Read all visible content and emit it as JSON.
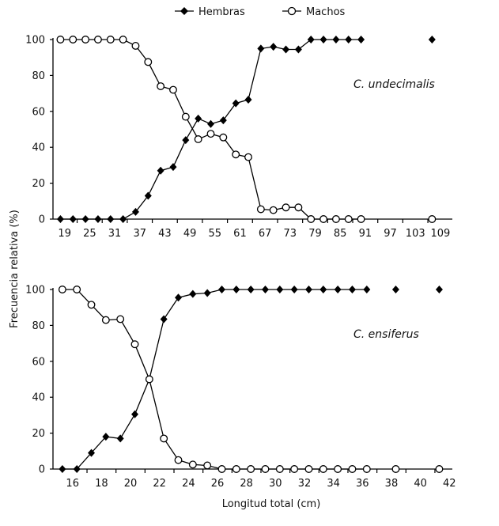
{
  "legend": {
    "series_a": "Hembras",
    "series_b": "Machos"
  },
  "ylabel": "Frecuencia relativa (%)",
  "xlabel": "Longitud total (cm)",
  "chart_data": [
    {
      "type": "line",
      "title": "C. undecimalis",
      "xlabel": "Longitud total (cm)",
      "ylabel": "Frecuencia relativa (%)",
      "ylim": [
        0,
        100
      ],
      "yticks": [
        0,
        20,
        40,
        60,
        80,
        100
      ],
      "xticks": [
        19,
        25,
        31,
        37,
        43,
        49,
        55,
        61,
        67,
        73,
        79,
        85,
        91,
        97,
        103,
        109
      ],
      "step": 3,
      "x": [
        18,
        21,
        24,
        27,
        30,
        33,
        36,
        39,
        42,
        45,
        48,
        51,
        54,
        57,
        60,
        63,
        66,
        69,
        72,
        75,
        78,
        81,
        84,
        87,
        90,
        107
      ],
      "series": [
        {
          "name": "Hembras",
          "marker": "diamond",
          "values": [
            0,
            0,
            0,
            0,
            0,
            0,
            4,
            13,
            27,
            29,
            44,
            56,
            53,
            55,
            64.5,
            66.5,
            95,
            96,
            94.5,
            94.5,
            100,
            100,
            100,
            100,
            100,
            100
          ]
        },
        {
          "name": "Machos",
          "marker": "circle",
          "values": [
            100,
            100,
            100,
            100,
            100,
            100,
            96.5,
            87.5,
            74,
            72,
            57,
            44.5,
            47.5,
            45.5,
            36,
            34.5,
            5.5,
            5,
            6.5,
            6.5,
            0,
            0,
            0,
            0,
            0,
            0
          ]
        }
      ],
      "legend_position": "top"
    },
    {
      "type": "line",
      "title": "C. ensiferus",
      "xlabel": "Longitud total (cm)",
      "ylabel": "Frecuencia relativa (%)",
      "ylim": [
        0,
        100
      ],
      "yticks": [
        0,
        20,
        40,
        60,
        80,
        100
      ],
      "xticks": [
        16,
        18,
        20,
        22,
        24,
        26,
        28,
        30,
        32,
        34,
        36,
        38,
        40,
        42
      ],
      "step": 1,
      "x": [
        15.3,
        16.3,
        17.3,
        18.3,
        19.3,
        20.3,
        21.3,
        22.3,
        23.3,
        24.3,
        25.3,
        26.3,
        27.3,
        28.3,
        29.3,
        30.3,
        31.3,
        32.3,
        33.3,
        34.3,
        35.3,
        36.3,
        38.3,
        41.3
      ],
      "series": [
        {
          "name": "Hembras",
          "marker": "diamond",
          "values": [
            0,
            0,
            9,
            18,
            17,
            30.5,
            50,
            83.5,
            95.5,
            97.5,
            98,
            100,
            100,
            100,
            100,
            100,
            100,
            100,
            100,
            100,
            100,
            100,
            100,
            100
          ]
        },
        {
          "name": "Machos",
          "marker": "circle",
          "values": [
            100,
            100,
            91.5,
            83,
            83.5,
            69.5,
            50,
            17,
            5,
            2.5,
            2,
            0,
            0,
            0,
            0,
            0,
            0,
            0,
            0,
            0,
            0,
            0,
            0,
            0
          ]
        }
      ],
      "legend_position": "top"
    }
  ]
}
